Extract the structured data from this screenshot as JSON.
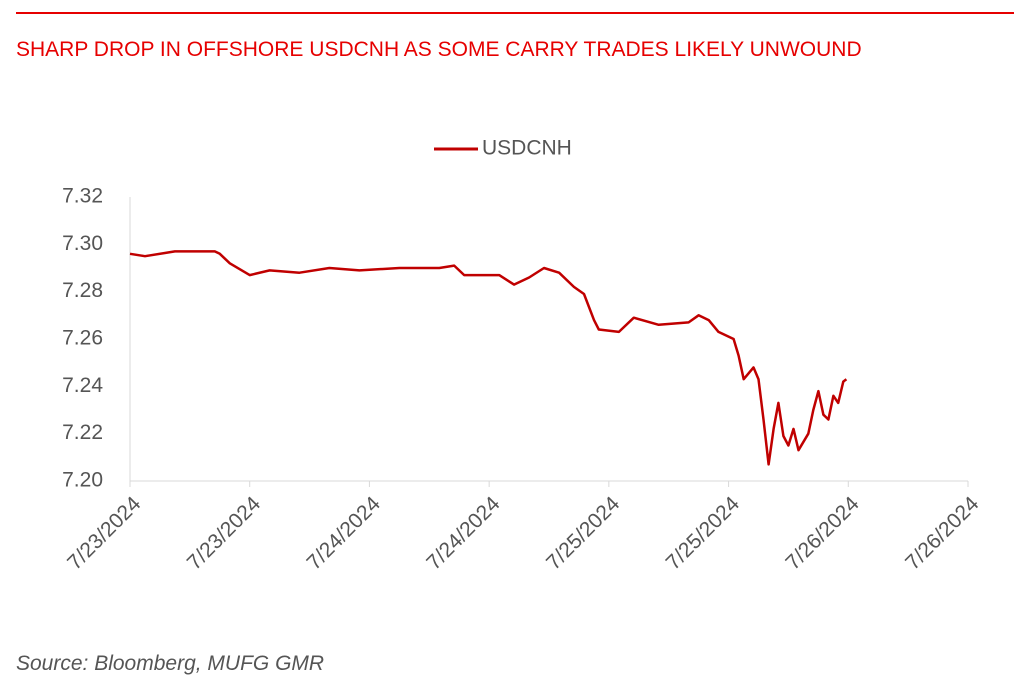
{
  "chart_data": {
    "type": "line",
    "title": "SHARP DROP IN OFFSHORE USDCNH AS SOME CARRY TRADES LIKELY UNWOUND",
    "source": "Source: Bloomberg, MUFG GMR",
    "legend": "top",
    "grid": false,
    "x": [
      23,
      23.0625,
      23.1875,
      23.354,
      23.375,
      23.417,
      23.5,
      23.583,
      23.708,
      23.833,
      23.958,
      24.125,
      24.292,
      24.354,
      24.396,
      24.542,
      24.604,
      24.667,
      24.729,
      24.792,
      24.854,
      24.896,
      24.938,
      24.958,
      25.042,
      25.104,
      25.208,
      25.333,
      25.375,
      25.417,
      25.458,
      25.521,
      25.542,
      25.563,
      25.604,
      25.625,
      25.646,
      25.667,
      25.688,
      25.708,
      25.729,
      25.75,
      25.771,
      25.792,
      25.833,
      25.854,
      25.875,
      25.896,
      25.917,
      25.938,
      25.958,
      25.979,
      25.992
    ],
    "series": [
      {
        "name": "USDCNH",
        "color": "#c00000",
        "values": [
          7.296,
          7.295,
          7.297,
          7.297,
          7.296,
          7.292,
          7.287,
          7.289,
          7.288,
          7.29,
          7.289,
          7.29,
          7.29,
          7.291,
          7.287,
          7.287,
          7.283,
          7.286,
          7.29,
          7.288,
          7.282,
          7.279,
          7.268,
          7.264,
          7.263,
          7.269,
          7.266,
          7.267,
          7.27,
          7.268,
          7.263,
          7.26,
          7.253,
          7.243,
          7.248,
          7.243,
          7.226,
          7.207,
          7.222,
          7.233,
          7.219,
          7.215,
          7.222,
          7.213,
          7.22,
          7.23,
          7.238,
          7.228,
          7.226,
          7.236,
          7.233,
          7.242,
          7.243
        ]
      }
    ],
    "xlim": [
      23,
      26.5
    ],
    "xticks": [
      {
        "value": 23,
        "label": "7/23/2024"
      },
      {
        "value": 23.5,
        "label": "7/23/2024"
      },
      {
        "value": 24,
        "label": "7/24/2024"
      },
      {
        "value": 24.5,
        "label": "7/24/2024"
      },
      {
        "value": 25,
        "label": "7/25/2024"
      },
      {
        "value": 25.5,
        "label": "7/25/2024"
      },
      {
        "value": 26,
        "label": "7/26/2024"
      },
      {
        "value": 26.5,
        "label": "7/26/2024"
      }
    ],
    "ylim": [
      7.2,
      7.32
    ],
    "yticks": [
      {
        "value": 7.2,
        "label": "7.20"
      },
      7.22,
      7.24,
      7.26,
      7.28,
      {
        "value": 7.3,
        "label": "7.30"
      },
      7.32
    ]
  }
}
